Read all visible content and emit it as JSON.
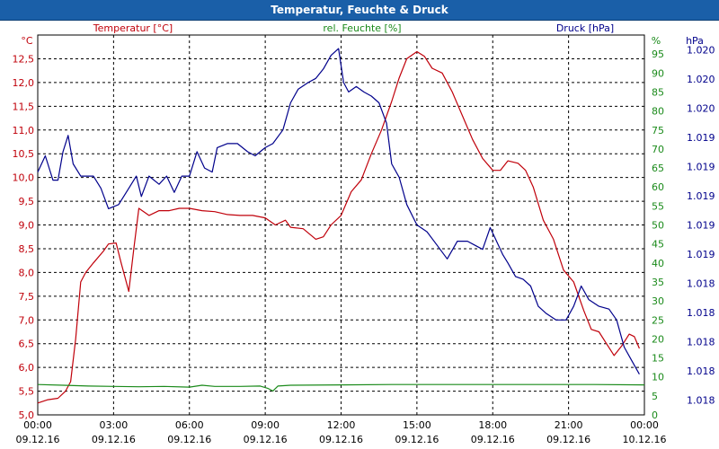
{
  "window": {
    "title": "Temperatur, Feuchte & Druck"
  },
  "colors": {
    "temperature": "#c0000a",
    "humidity": "#1a8a1a",
    "pressure": "#00008b",
    "grid": "#000000",
    "title_bar": "#1a5fa8"
  },
  "chart_data": {
    "type": "line",
    "title": "Temperatur, Feuchte & Druck",
    "x_ticks": [
      {
        "hours": 0,
        "time": "00:00",
        "date": "09.12.16"
      },
      {
        "hours": 3,
        "time": "03:00",
        "date": "09.12.16"
      },
      {
        "hours": 6,
        "time": "06:00",
        "date": "09.12.16"
      },
      {
        "hours": 9,
        "time": "09:00",
        "date": "09.12.16"
      },
      {
        "hours": 12,
        "time": "12:00",
        "date": "09.12.16"
      },
      {
        "hours": 15,
        "time": "15:00",
        "date": "09.12.16"
      },
      {
        "hours": 18,
        "time": "18:00",
        "date": "09.12.16"
      },
      {
        "hours": 21,
        "time": "21:00",
        "date": "09.12.16"
      },
      {
        "hours": 24,
        "time": "00:00",
        "date": "10.12.16"
      }
    ],
    "x_range_hours": [
      0,
      24
    ],
    "axes": {
      "temperature": {
        "label": "Temperatur [°C]",
        "unit": "°C",
        "range": [
          5.0,
          13.0
        ],
        "ticks": [
          "5,0",
          "5,5",
          "6,0",
          "6,5",
          "7,0",
          "7,5",
          "8,0",
          "8,5",
          "9,0",
          "9,5",
          "10,0",
          "10,5",
          "11,0",
          "11,5",
          "12,0",
          "12,5"
        ]
      },
      "humidity": {
        "label": "rel. Feuchte [%]",
        "unit": "%",
        "range": [
          0,
          100
        ],
        "ticks": [
          "0",
          "5",
          "10",
          "15",
          "20",
          "25",
          "30",
          "35",
          "40",
          "45",
          "50",
          "55",
          "60",
          "65",
          "70",
          "75",
          "80",
          "85",
          "90",
          "95"
        ]
      },
      "pressure": {
        "label": "Druck [hPa]",
        "unit": "hPa",
        "range": [
          1017.6,
          1020.4
        ],
        "ticks": [
          "1.018",
          "1.018",
          "1.018",
          "1.018",
          "1.018",
          "1.019",
          "1.019",
          "1.019",
          "1.019",
          "1.019",
          "1.020",
          "1.020",
          "1.020"
        ]
      }
    },
    "series": [
      {
        "name": "Temperatur",
        "axis": "temperature",
        "points": [
          [
            0,
            5.25
          ],
          [
            0.4,
            5.32
          ],
          [
            0.8,
            5.35
          ],
          [
            1.1,
            5.5
          ],
          [
            1.3,
            5.7
          ],
          [
            1.5,
            6.6
          ],
          [
            1.7,
            7.8
          ],
          [
            1.9,
            8.0
          ],
          [
            2.2,
            8.2
          ],
          [
            2.6,
            8.45
          ],
          [
            2.8,
            8.6
          ],
          [
            3.1,
            8.62
          ],
          [
            3.3,
            8.2
          ],
          [
            3.6,
            7.6
          ],
          [
            3.8,
            8.5
          ],
          [
            4.0,
            9.35
          ],
          [
            4.4,
            9.2
          ],
          [
            4.8,
            9.3
          ],
          [
            5.2,
            9.3
          ],
          [
            5.6,
            9.35
          ],
          [
            6.0,
            9.35
          ],
          [
            6.5,
            9.3
          ],
          [
            7.0,
            9.28
          ],
          [
            7.5,
            9.22
          ],
          [
            8.0,
            9.2
          ],
          [
            8.5,
            9.2
          ],
          [
            9.0,
            9.15
          ],
          [
            9.4,
            9.0
          ],
          [
            9.8,
            9.1
          ],
          [
            10.0,
            8.95
          ],
          [
            10.5,
            8.92
          ],
          [
            11.0,
            8.7
          ],
          [
            11.3,
            8.75
          ],
          [
            11.6,
            9.0
          ],
          [
            12.0,
            9.2
          ],
          [
            12.4,
            9.7
          ],
          [
            12.8,
            9.95
          ],
          [
            13.2,
            10.5
          ],
          [
            13.6,
            11.0
          ],
          [
            14.0,
            11.6
          ],
          [
            14.3,
            12.1
          ],
          [
            14.6,
            12.5
          ],
          [
            15.0,
            12.65
          ],
          [
            15.3,
            12.55
          ],
          [
            15.6,
            12.3
          ],
          [
            16.0,
            12.2
          ],
          [
            16.4,
            11.8
          ],
          [
            16.8,
            11.3
          ],
          [
            17.2,
            10.8
          ],
          [
            17.6,
            10.4
          ],
          [
            18.0,
            10.15
          ],
          [
            18.3,
            10.15
          ],
          [
            18.6,
            10.35
          ],
          [
            19.0,
            10.3
          ],
          [
            19.3,
            10.15
          ],
          [
            19.6,
            9.8
          ],
          [
            20.0,
            9.1
          ],
          [
            20.4,
            8.7
          ],
          [
            20.8,
            8.05
          ],
          [
            21.2,
            7.8
          ],
          [
            21.6,
            7.2
          ],
          [
            21.9,
            6.8
          ],
          [
            22.2,
            6.75
          ],
          [
            22.5,
            6.5
          ],
          [
            22.8,
            6.25
          ],
          [
            23.1,
            6.45
          ],
          [
            23.4,
            6.7
          ],
          [
            23.6,
            6.65
          ],
          [
            23.8,
            6.4
          ]
        ]
      },
      {
        "name": "rel. Feuchte",
        "axis": "humidity",
        "points": [
          [
            0,
            8.0
          ],
          [
            1.0,
            7.8
          ],
          [
            2.0,
            7.6
          ],
          [
            3.0,
            7.5
          ],
          [
            4.0,
            7.4
          ],
          [
            5.0,
            7.5
          ],
          [
            6.0,
            7.3
          ],
          [
            6.5,
            7.8
          ],
          [
            7.0,
            7.5
          ],
          [
            8.0,
            7.5
          ],
          [
            8.8,
            7.6
          ],
          [
            9.1,
            7.0
          ],
          [
            9.3,
            6.3
          ],
          [
            9.5,
            7.6
          ],
          [
            10.0,
            7.8
          ],
          [
            12.0,
            7.9
          ],
          [
            14.0,
            8.0
          ],
          [
            16.0,
            8.0
          ],
          [
            18.0,
            8.0
          ],
          [
            20.0,
            8.0
          ],
          [
            22.0,
            8.0
          ],
          [
            24.0,
            7.9
          ]
        ]
      },
      {
        "name": "Druck",
        "axis": "pressure",
        "points": [
          [
            0,
            1019.39
          ],
          [
            0.3,
            1019.51
          ],
          [
            0.6,
            1019.33
          ],
          [
            0.8,
            1019.33
          ],
          [
            1.0,
            1019.54
          ],
          [
            1.2,
            1019.66
          ],
          [
            1.4,
            1019.45
          ],
          [
            1.7,
            1019.36
          ],
          [
            1.9,
            1019.36
          ],
          [
            2.2,
            1019.36
          ],
          [
            2.5,
            1019.27
          ],
          [
            2.8,
            1019.12
          ],
          [
            3.2,
            1019.15
          ],
          [
            3.6,
            1019.27
          ],
          [
            3.9,
            1019.36
          ],
          [
            4.1,
            1019.21
          ],
          [
            4.4,
            1019.36
          ],
          [
            4.8,
            1019.3
          ],
          [
            5.1,
            1019.36
          ],
          [
            5.4,
            1019.24
          ],
          [
            5.7,
            1019.36
          ],
          [
            6.0,
            1019.36
          ],
          [
            6.3,
            1019.54
          ],
          [
            6.6,
            1019.42
          ],
          [
            6.9,
            1019.39
          ],
          [
            7.1,
            1019.57
          ],
          [
            7.5,
            1019.6
          ],
          [
            7.9,
            1019.6
          ],
          [
            8.3,
            1019.54
          ],
          [
            8.6,
            1019.51
          ],
          [
            9.0,
            1019.57
          ],
          [
            9.3,
            1019.6
          ],
          [
            9.7,
            1019.7
          ],
          [
            10.0,
            1019.9
          ],
          [
            10.3,
            1020.0
          ],
          [
            10.7,
            1020.05
          ],
          [
            11.0,
            1020.08
          ],
          [
            11.3,
            1020.15
          ],
          [
            11.6,
            1020.25
          ],
          [
            11.9,
            1020.3
          ],
          [
            12.1,
            1020.05
          ],
          [
            12.3,
            1019.98
          ],
          [
            12.6,
            1020.02
          ],
          [
            12.9,
            1019.98
          ],
          [
            13.2,
            1019.95
          ],
          [
            13.5,
            1019.9
          ],
          [
            13.8,
            1019.75
          ],
          [
            14.0,
            1019.45
          ],
          [
            14.3,
            1019.35
          ],
          [
            14.6,
            1019.15
          ],
          [
            15.0,
            1019.0
          ],
          [
            15.4,
            1018.95
          ],
          [
            15.8,
            1018.85
          ],
          [
            16.2,
            1018.75
          ],
          [
            16.6,
            1018.88
          ],
          [
            17.0,
            1018.88
          ],
          [
            17.3,
            1018.85
          ],
          [
            17.6,
            1018.82
          ],
          [
            17.9,
            1018.98
          ],
          [
            18.1,
            1018.9
          ],
          [
            18.4,
            1018.78
          ],
          [
            18.6,
            1018.72
          ],
          [
            18.9,
            1018.62
          ],
          [
            19.2,
            1018.6
          ],
          [
            19.5,
            1018.55
          ],
          [
            19.8,
            1018.4
          ],
          [
            20.1,
            1018.35
          ],
          [
            20.5,
            1018.3
          ],
          [
            20.9,
            1018.3
          ],
          [
            21.2,
            1018.4
          ],
          [
            21.5,
            1018.55
          ],
          [
            21.8,
            1018.45
          ],
          [
            22.2,
            1018.4
          ],
          [
            22.6,
            1018.38
          ],
          [
            22.9,
            1018.3
          ],
          [
            23.2,
            1018.1
          ],
          [
            23.5,
            1018.0
          ],
          [
            23.8,
            1017.9
          ]
        ]
      }
    ]
  }
}
